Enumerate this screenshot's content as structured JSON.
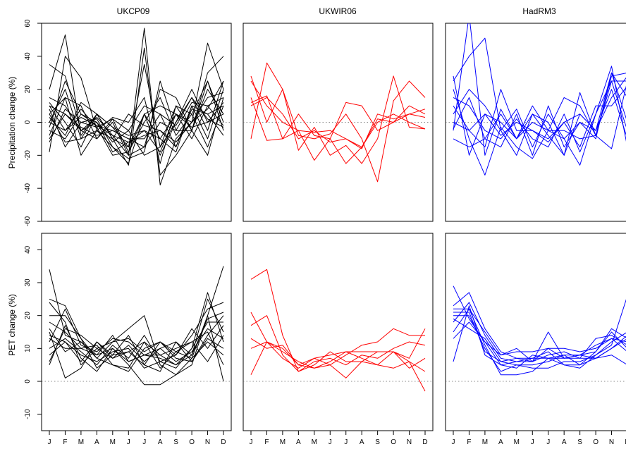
{
  "figure": {
    "column_titles": [
      "UKCP09",
      "UKWIR06",
      "HadRM3"
    ],
    "row_ylabels": [
      "Precipitation change (%)",
      "PET change (%)"
    ]
  },
  "chart_data": [
    {
      "type": "line",
      "panel": "UKCP09 precipitation",
      "title": "UKCP09",
      "ylabel": "Precipitation change (%)",
      "color": "#000000",
      "ylim": [
        -60,
        60
      ],
      "yticks": [
        -60,
        -40,
        -20,
        0,
        20,
        40,
        60
      ],
      "x": [
        "J",
        "F",
        "M",
        "A",
        "M",
        "J",
        "J",
        "A",
        "S",
        "O",
        "N",
        "D"
      ],
      "zero_line": true,
      "series": [
        {
          "values": [
            35,
            28,
            -5,
            3,
            -8,
            -20,
            57,
            -38,
            -10,
            0,
            48,
            20
          ]
        },
        {
          "values": [
            20,
            53,
            -8,
            5,
            -3,
            -15,
            35,
            -15,
            10,
            5,
            25,
            -5
          ]
        },
        {
          "values": [
            -18,
            40,
            27,
            -5,
            -10,
            -26,
            45,
            -32,
            -20,
            -5,
            30,
            40
          ]
        },
        {
          "values": [
            5,
            15,
            -20,
            -5,
            -15,
            -22,
            -18,
            25,
            -5,
            12,
            10,
            15
          ]
        },
        {
          "values": [
            0,
            20,
            -10,
            5,
            -3,
            -8,
            -5,
            -10,
            5,
            -3,
            0,
            12
          ]
        },
        {
          "values": [
            -5,
            -10,
            5,
            0,
            -12,
            -5,
            10,
            5,
            -15,
            10,
            -10,
            20
          ]
        },
        {
          "values": [
            10,
            -5,
            8,
            -3,
            2,
            -18,
            5,
            -20,
            0,
            15,
            -5,
            25
          ]
        },
        {
          "values": [
            -10,
            5,
            -3,
            -8,
            -5,
            -10,
            -15,
            20,
            15,
            -5,
            20,
            5
          ]
        },
        {
          "values": [
            3,
            -8,
            12,
            5,
            -10,
            5,
            -2,
            -5,
            -15,
            8,
            5,
            -8
          ]
        },
        {
          "values": [
            -12,
            8,
            0,
            -3,
            -20,
            -18,
            0,
            15,
            -8,
            5,
            -15,
            10
          ]
        },
        {
          "values": [
            15,
            10,
            -5,
            -10,
            2,
            -5,
            -20,
            -15,
            0,
            20,
            0,
            5
          ]
        },
        {
          "values": [
            8,
            -15,
            0,
            2,
            -15,
            -25,
            5,
            10,
            5,
            -10,
            10,
            -2
          ]
        },
        {
          "values": [
            -3,
            25,
            5,
            -2,
            -8,
            -12,
            -8,
            -5,
            -12,
            0,
            15,
            18
          ]
        },
        {
          "values": [
            5,
            -12,
            -10,
            -5,
            3,
            0,
            15,
            -25,
            10,
            -5,
            25,
            0
          ]
        },
        {
          "values": [
            12,
            0,
            -15,
            5,
            -10,
            -15,
            5,
            -10,
            -18,
            10,
            5,
            10
          ]
        },
        {
          "values": [
            -8,
            15,
            10,
            -10,
            0,
            -20,
            -15,
            0,
            -5,
            -5,
            -20,
            15
          ]
        },
        {
          "values": [
            0,
            -5,
            3,
            -2,
            -5,
            -10,
            -10,
            5,
            -2,
            15,
            2,
            -3
          ]
        },
        {
          "values": [
            10,
            5,
            -5,
            0,
            -18,
            -12,
            -5,
            -18,
            5,
            0,
            8,
            25
          ]
        }
      ]
    },
    {
      "type": "line",
      "panel": "UKWIR06 precipitation",
      "title": "UKWIR06",
      "ylabel": "",
      "color": "#ff0000",
      "ylim": [
        -60,
        60
      ],
      "yticks": [
        -60,
        -40,
        -20,
        0,
        20,
        40,
        60
      ],
      "x": [
        "J",
        "F",
        "M",
        "A",
        "M",
        "J",
        "J",
        "A",
        "S",
        "O",
        "N",
        "D"
      ],
      "zero_line": true,
      "series": [
        {
          "values": [
            28,
            0,
            20,
            -17,
            -3,
            -20,
            -14,
            -25,
            -10,
            28,
            -3,
            -4
          ]
        },
        {
          "values": [
            -10,
            36,
            20,
            -8,
            -10,
            -7,
            5,
            -10,
            -36,
            13,
            25,
            15
          ]
        },
        {
          "values": [
            25,
            10,
            0,
            -5,
            -23,
            -10,
            -25,
            -15,
            2,
            0,
            10,
            5
          ]
        },
        {
          "values": [
            12,
            16,
            -10,
            5,
            -8,
            -10,
            12,
            10,
            -5,
            0,
            5,
            8
          ]
        },
        {
          "values": [
            10,
            15,
            5,
            -10,
            -5,
            -12,
            -10,
            -16,
            5,
            2,
            5,
            3
          ]
        },
        {
          "values": [
            15,
            -11,
            -10,
            -5,
            -6,
            -5,
            -10,
            -15,
            0,
            5,
            0,
            -4
          ]
        }
      ]
    },
    {
      "type": "line",
      "panel": "HadRM3 precipitation",
      "title": "HadRM3",
      "ylabel": "",
      "color": "#0000ff",
      "ylim": [
        -60,
        60
      ],
      "yticks": [
        -60,
        -40,
        -20,
        0,
        20,
        40,
        60
      ],
      "x": [
        "J",
        "F",
        "M",
        "A",
        "M",
        "J",
        "J",
        "A",
        "S",
        "O",
        "N",
        "D"
      ],
      "zero_line": true,
      "series": [
        {
          "values": [
            -5,
            65,
            -20,
            8,
            -10,
            0,
            -5,
            15,
            10,
            -8,
            25,
            -5
          ]
        },
        {
          "values": [
            25,
            40,
            51,
            -5,
            -20,
            5,
            -8,
            -20,
            18,
            -8,
            28,
            30
          ]
        },
        {
          "values": [
            20,
            -10,
            -32,
            -3,
            -15,
            -22,
            -5,
            -10,
            -26,
            5,
            25,
            25
          ]
        },
        {
          "values": [
            10,
            -5,
            -15,
            20,
            -5,
            -5,
            -10,
            0,
            5,
            -5,
            30,
            0
          ]
        },
        {
          "values": [
            -4,
            15,
            -10,
            -15,
            5,
            -20,
            10,
            -15,
            0,
            -5,
            20,
            -10
          ]
        },
        {
          "values": [
            28,
            -20,
            5,
            0,
            -10,
            5,
            0,
            -20,
            5,
            -5,
            15,
            28
          ]
        },
        {
          "values": [
            15,
            10,
            -5,
            -10,
            2,
            -10,
            -15,
            5,
            -18,
            5,
            34,
            -15
          ]
        },
        {
          "values": [
            -10,
            -15,
            -10,
            5,
            -10,
            10,
            -5,
            -5,
            -10,
            -8,
            -16,
            25
          ]
        },
        {
          "values": [
            5,
            20,
            10,
            -5,
            8,
            -15,
            5,
            -10,
            0,
            -10,
            30,
            15
          ]
        },
        {
          "values": [
            0,
            -5,
            5,
            -8,
            0,
            -5,
            -12,
            0,
            -15,
            10,
            10,
            22
          ]
        }
      ]
    },
    {
      "type": "line",
      "panel": "UKCP09 PET",
      "title": "",
      "ylabel": "PET change (%)",
      "color": "#000000",
      "ylim": [
        -15,
        45
      ],
      "yticks": [
        -10,
        0,
        10,
        20,
        30,
        40
      ],
      "x": [
        "J",
        "F",
        "M",
        "A",
        "M",
        "J",
        "J",
        "A",
        "S",
        "O",
        "N",
        "D"
      ],
      "zero_line": true,
      "series": [
        {
          "values": [
            34,
            14,
            12,
            8,
            10,
            5,
            -1,
            -1,
            2,
            5,
            20,
            35
          ]
        },
        {
          "values": [
            25,
            23,
            13,
            7,
            5,
            4,
            12,
            8,
            5,
            10,
            27,
            12
          ]
        },
        {
          "values": [
            24,
            18,
            5,
            10,
            12,
            16,
            20,
            5,
            2,
            7,
            20,
            0
          ]
        },
        {
          "values": [
            20,
            20,
            13,
            4,
            8,
            9,
            5,
            12,
            8,
            14,
            22,
            24
          ]
        },
        {
          "values": [
            18,
            15,
            10,
            8,
            14,
            6,
            8,
            10,
            12,
            8,
            25,
            15
          ]
        },
        {
          "values": [
            15,
            1,
            4,
            12,
            8,
            14,
            5,
            3,
            12,
            6,
            14,
            20
          ]
        },
        {
          "values": [
            14,
            12,
            8,
            6,
            9,
            10,
            4,
            6,
            8,
            16,
            10,
            17
          ]
        },
        {
          "values": [
            13,
            10,
            10,
            11,
            5,
            3,
            10,
            12,
            9,
            7,
            12,
            8
          ]
        },
        {
          "values": [
            12,
            22,
            11,
            9,
            13,
            12,
            8,
            8,
            10,
            12,
            15,
            5
          ]
        },
        {
          "values": [
            10,
            13,
            9,
            5,
            11,
            7,
            14,
            6,
            4,
            10,
            18,
            18
          ]
        },
        {
          "values": [
            8,
            12,
            6,
            12,
            7,
            11,
            6,
            10,
            6,
            9,
            16,
            13
          ]
        },
        {
          "values": [
            6,
            16,
            14,
            10,
            7,
            9,
            12,
            4,
            9,
            12,
            6,
            14
          ]
        },
        {
          "values": [
            5,
            17,
            7,
            3,
            10,
            6,
            8,
            7,
            5,
            8,
            19,
            21
          ]
        },
        {
          "values": [
            16,
            9,
            12,
            7,
            12,
            13,
            9,
            12,
            7,
            6,
            13,
            10
          ]
        }
      ]
    },
    {
      "type": "line",
      "panel": "UKWIR06 PET",
      "title": "",
      "ylabel": "",
      "color": "#ff0000",
      "ylim": [
        -15,
        45
      ],
      "yticks": [
        -10,
        0,
        10,
        20,
        30,
        40
      ],
      "x": [
        "J",
        "F",
        "M",
        "A",
        "M",
        "J",
        "J",
        "A",
        "S",
        "O",
        "N",
        "D"
      ],
      "zero_line": true,
      "series": [
        {
          "values": [
            31,
            34,
            14,
            3,
            5,
            9,
            6,
            6,
            9,
            9,
            7,
            16
          ]
        },
        {
          "values": [
            21,
            12,
            10,
            5,
            7,
            5,
            8,
            11,
            12,
            16,
            14,
            14
          ]
        },
        {
          "values": [
            17,
            20,
            8,
            3,
            6,
            7,
            5,
            8,
            7,
            10,
            12,
            11
          ]
        },
        {
          "values": [
            13,
            10,
            11,
            5,
            4,
            6,
            9,
            7,
            5,
            9,
            4,
            7
          ]
        },
        {
          "values": [
            10,
            12,
            7,
            4,
            7,
            8,
            9,
            9,
            9,
            9,
            6,
            -3
          ]
        },
        {
          "values": [
            2,
            12,
            9,
            6,
            4,
            5,
            1,
            6,
            5,
            4,
            6,
            3
          ]
        }
      ]
    },
    {
      "type": "line",
      "panel": "HadRM3 PET",
      "title": "",
      "ylabel": "",
      "color": "#0000ff",
      "ylim": [
        -15,
        45
      ],
      "yticks": [
        -10,
        0,
        10,
        20,
        30,
        40
      ],
      "x": [
        "J",
        "F",
        "M",
        "A",
        "M",
        "J",
        "J",
        "A",
        "S",
        "O",
        "N",
        "D"
      ],
      "zero_line": true,
      "series": [
        {
          "values": [
            29,
            19,
            12,
            5,
            6,
            7,
            9,
            5,
            4,
            8,
            11,
            26
          ]
        },
        {
          "values": [
            23,
            27,
            16,
            9,
            7,
            6,
            10,
            7,
            8,
            9,
            16,
            13
          ]
        },
        {
          "values": [
            22,
            22,
            15,
            8,
            10,
            6,
            8,
            9,
            7,
            13,
            14,
            11
          ]
        },
        {
          "values": [
            20,
            20,
            10,
            3,
            5,
            4,
            4,
            6,
            6,
            8,
            12,
            15
          ]
        },
        {
          "values": [
            18,
            24,
            14,
            7,
            6,
            6,
            15,
            7,
            7,
            7,
            10,
            14
          ]
        },
        {
          "values": [
            15,
            22,
            11,
            2,
            2,
            3,
            7,
            5,
            5,
            9,
            15,
            10
          ]
        },
        {
          "values": [
            13,
            18,
            12,
            8,
            9,
            9,
            10,
            10,
            9,
            10,
            13,
            9
          ]
        },
        {
          "values": [
            6,
            23,
            8,
            5,
            4,
            8,
            7,
            7,
            8,
            7,
            8,
            5
          ]
        },
        {
          "values": [
            21,
            21,
            9,
            6,
            7,
            7,
            7,
            8,
            5,
            7,
            10,
            13
          ]
        },
        {
          "values": [
            19,
            16,
            13,
            6,
            5,
            5,
            6,
            8,
            8,
            11,
            13,
            12
          ]
        }
      ]
    }
  ]
}
